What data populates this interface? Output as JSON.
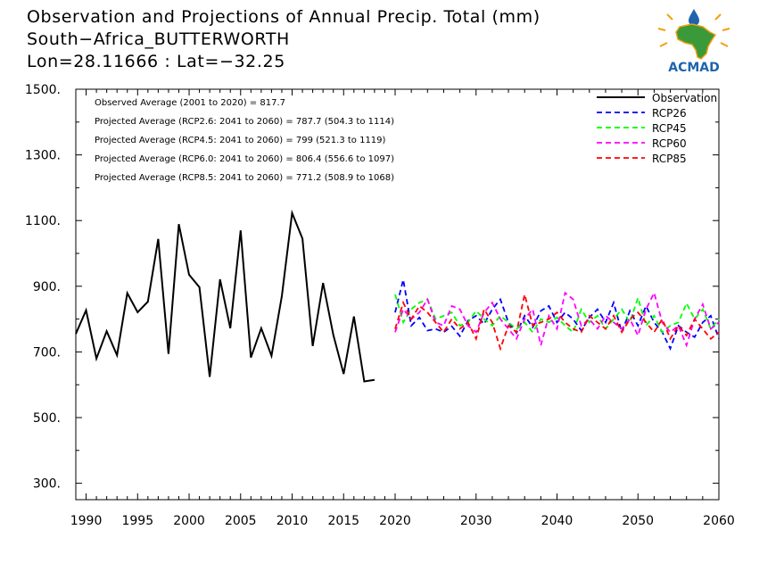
{
  "title": {
    "line1": "Observation and Projections of Annual Precip. Total (mm)",
    "line2": "South−Africa_BUTTERWORTH",
    "line3": "Lon=28.11666 : Lat=−32.25"
  },
  "logo": {
    "text": "ACMAD",
    "icon": "africa-map-logo-icon",
    "colors": {
      "land": "#3a9a3a",
      "sun": "#f0a010",
      "text": "#1e63b0"
    }
  },
  "annotations": [
    "Observed Average (2001 to 2020) = 817.7",
    "Projected Average (RCP2.6: 2041 to 2060) = 787.7 (504.3 to 1114)",
    "Projected Average (RCP4.5: 2041 to 2060) = 799 (521.3 to 1119)",
    "Projected Average (RCP6.0: 2041 to 2060) = 806.4 (556.6 to 1097)",
    "Projected Average (RCP8.5: 2041 to 2060) = 771.2 (508.9 to 1068)"
  ],
  "chart_data": {
    "type": "line",
    "xlim": [
      1989,
      2060
    ],
    "ylim": [
      250,
      1500
    ],
    "x_ticks": [
      1990,
      1995,
      2000,
      2005,
      2010,
      2015,
      2020,
      2030,
      2040,
      2050,
      2060
    ],
    "y_ticks": [
      300,
      500,
      700,
      900,
      1100,
      1300,
      1500
    ],
    "y_tick_labels": [
      "300.",
      "500.",
      "700.",
      "900.",
      "1100.",
      "1300.",
      "1500."
    ],
    "legend_position": "top-right",
    "series": [
      {
        "name": "Observation",
        "style": "solid",
        "color": "#000000",
        "x": [
          1989,
          1990,
          1991,
          1992,
          1993,
          1994,
          1995,
          1996,
          1997,
          1998,
          1999,
          2000,
          2001,
          2002,
          2003,
          2004,
          2005,
          2006,
          2007,
          2008,
          2009,
          2010,
          2011,
          2012,
          2013,
          2014,
          2015,
          2016,
          2017,
          2018,
          2019
        ],
        "values": [
          755,
          827,
          680,
          763,
          690,
          879,
          821,
          853,
          1044,
          694,
          1089,
          935,
          897,
          624,
          921,
          772,
          1070,
          683,
          772,
          688,
          870,
          1123,
          1045,
          718,
          910,
          752,
          633,
          808,
          610,
          615,
          null
        ]
      },
      {
        "name": "RCP26",
        "style": "dashed",
        "color": "#0000ff",
        "x": [
          2020,
          2021,
          2022,
          2023,
          2024,
          2025,
          2026,
          2027,
          2028,
          2029,
          2030,
          2031,
          2032,
          2033,
          2034,
          2035,
          2036,
          2037,
          2038,
          2039,
          2040,
          2041,
          2042,
          2043,
          2044,
          2045,
          2046,
          2047,
          2048,
          2049,
          2050,
          2051,
          2052,
          2053,
          2054,
          2055,
          2056,
          2057,
          2058,
          2059,
          2060
        ],
        "values": [
          820,
          920,
          780,
          805,
          765,
          770,
          760,
          778,
          748,
          795,
          810,
          785,
          830,
          860,
          790,
          758,
          810,
          775,
          825,
          840,
          790,
          820,
          800,
          765,
          805,
          830,
          790,
          850,
          760,
          825,
          780,
          840,
          790,
          760,
          710,
          780,
          760,
          745,
          790,
          810,
          740
        ]
      },
      {
        "name": "RCP45",
        "style": "dashed",
        "color": "#00ff00",
        "x": [
          2020,
          2021,
          2022,
          2023,
          2024,
          2025,
          2026,
          2027,
          2028,
          2029,
          2030,
          2031,
          2032,
          2033,
          2034,
          2035,
          2036,
          2037,
          2038,
          2039,
          2040,
          2041,
          2042,
          2043,
          2044,
          2045,
          2046,
          2047,
          2048,
          2049,
          2050,
          2051,
          2052,
          2053,
          2054,
          2055,
          2056,
          2057,
          2058,
          2059,
          2060
        ],
        "values": [
          875,
          790,
          830,
          850,
          860,
          800,
          810,
          820,
          780,
          790,
          825,
          800,
          780,
          810,
          790,
          770,
          790,
          760,
          800,
          790,
          805,
          780,
          760,
          830,
          790,
          810,
          770,
          800,
          830,
          790,
          865,
          780,
          810,
          760,
          780,
          790,
          848,
          800,
          830,
          770,
          800
        ]
      },
      {
        "name": "RCP60",
        "style": "dashed",
        "color": "#ff00ff",
        "x": [
          2020,
          2021,
          2022,
          2023,
          2024,
          2025,
          2026,
          2027,
          2028,
          2029,
          2030,
          2031,
          2032,
          2033,
          2034,
          2035,
          2036,
          2037,
          2038,
          2039,
          2040,
          2041,
          2042,
          2043,
          2044,
          2045,
          2046,
          2047,
          2048,
          2049,
          2050,
          2051,
          2052,
          2053,
          2054,
          2055,
          2056,
          2057,
          2058,
          2059,
          2060
        ],
        "values": [
          760,
          830,
          800,
          820,
          860,
          790,
          780,
          840,
          830,
          780,
          760,
          820,
          850,
          800,
          770,
          740,
          800,
          830,
          720,
          810,
          770,
          880,
          860,
          780,
          800,
          770,
          810,
          790,
          770,
          800,
          750,
          830,
          880,
          790,
          760,
          780,
          720,
          800,
          845,
          770,
          790
        ]
      },
      {
        "name": "RCP85",
        "style": "dashed",
        "color": "#ff0000",
        "x": [
          2020,
          2021,
          2022,
          2023,
          2024,
          2025,
          2026,
          2027,
          2028,
          2029,
          2030,
          2031,
          2032,
          2033,
          2034,
          2035,
          2036,
          2037,
          2038,
          2039,
          2040,
          2041,
          2042,
          2043,
          2044,
          2045,
          2046,
          2047,
          2048,
          2049,
          2050,
          2051,
          2052,
          2053,
          2054,
          2055,
          2056,
          2057,
          2058,
          2059,
          2060
        ],
        "values": [
          770,
          850,
          800,
          840,
          820,
          790,
          760,
          800,
          770,
          790,
          740,
          830,
          790,
          710,
          780,
          760,
          875,
          780,
          790,
          800,
          820,
          790,
          770,
          760,
          810,
          790,
          770,
          810,
          760,
          800,
          820,
          790,
          760,
          800,
          740,
          780,
          750,
          800,
          770,
          740,
          760
        ]
      }
    ]
  }
}
